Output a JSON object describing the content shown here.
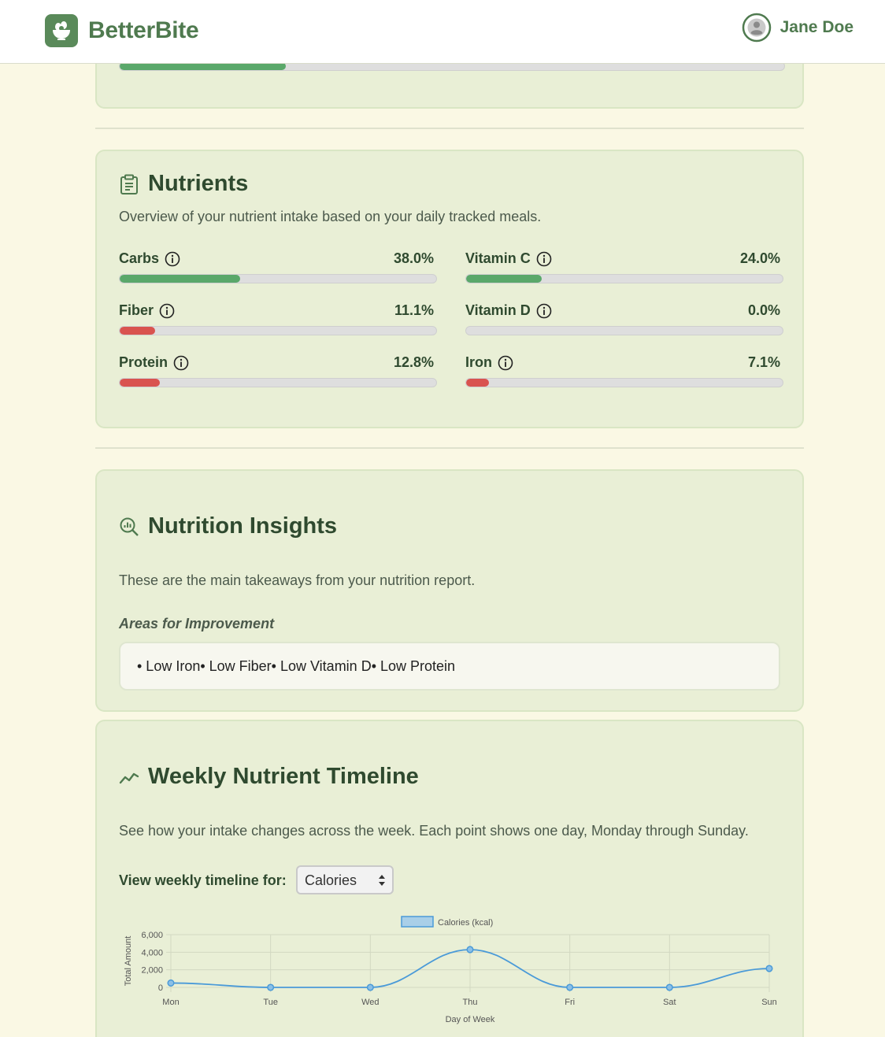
{
  "header": {
    "brand": "BetterBite",
    "user_name": "Jane Doe"
  },
  "top_progress": {
    "fraction": 0.25,
    "color": "#5aa86a"
  },
  "nutrients": {
    "title": "Nutrients",
    "description": "Overview of your nutrient intake based on your daily tracked meals.",
    "items": [
      {
        "label": "Carbs",
        "value": "38.0%",
        "fraction": 0.38,
        "color": "#5aa86a"
      },
      {
        "label": "Vitamin C",
        "value": "24.0%",
        "fraction": 0.24,
        "color": "#5aa86a"
      },
      {
        "label": "Fiber",
        "value": "11.1%",
        "fraction": 0.111,
        "color": "#d9534f"
      },
      {
        "label": "Vitamin D",
        "value": "0.0%",
        "fraction": 0.0,
        "color": "#d9534f"
      },
      {
        "label": "Protein",
        "value": "12.8%",
        "fraction": 0.128,
        "color": "#d9534f"
      },
      {
        "label": "Iron",
        "value": "7.1%",
        "fraction": 0.071,
        "color": "#d9534f"
      }
    ]
  },
  "insights": {
    "title": "Nutrition Insights",
    "description": "These are the main takeaways from your nutrition report.",
    "subhead": "Areas for Improvement",
    "improvements": "• Low Iron• Low Fiber• Low Vitamin D• Low Protein"
  },
  "timeline": {
    "title": "Weekly Nutrient Timeline",
    "description": "See how your intake changes across the week. Each point shows one day, Monday through Sunday.",
    "select_label": "View weekly timeline for:",
    "selected": "Calories"
  },
  "chart_data": {
    "type": "line",
    "categories": [
      "Mon",
      "Tue",
      "Wed",
      "Thu",
      "Fri",
      "Sat",
      "Sun"
    ],
    "series": [
      {
        "name": "Calories (kcal)",
        "values": [
          500,
          0,
          0,
          4300,
          0,
          0,
          2150
        ]
      }
    ],
    "xlabel": "Day of Week",
    "ylabel": "Total Amount",
    "ylim": [
      0,
      6000
    ],
    "yticks": [
      "0",
      "2,000",
      "4,000",
      "6,000"
    ],
    "grid": true,
    "legend": "top-center",
    "line_color": "#4a9ad8"
  }
}
